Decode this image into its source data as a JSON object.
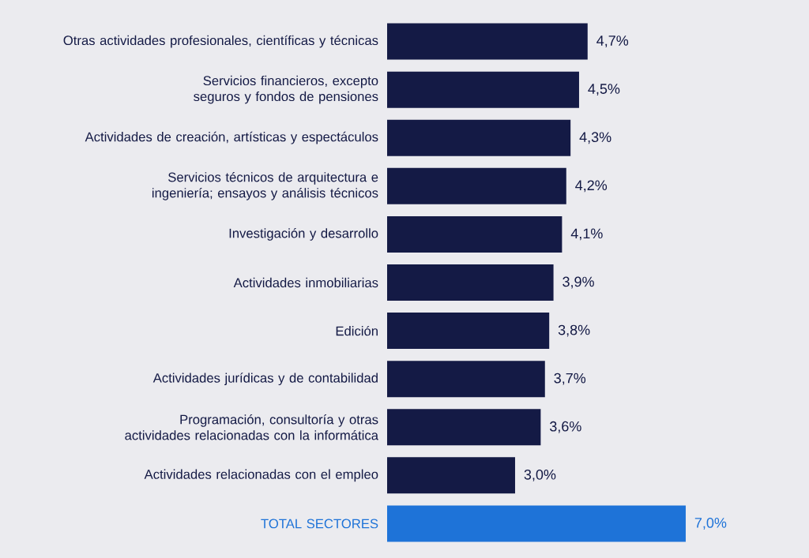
{
  "chart_data": {
    "type": "bar",
    "orientation": "horizontal",
    "categories": [
      "Otras actividades profesionales, científicas y técnicas",
      "Servicios financieros, excepto seguros y fondos de pensiones",
      "Actividades de creación, artísticas y espectáculos",
      "Servicios técnicos de arquitectura e ingeniería; ensayos y análisis técnicos",
      "Investigación y desarrollo",
      "Actividades inmobiliarias",
      "Edición",
      "Actividades jurídicas y de contabilidad",
      "Programación, consultoría y otras actividades relacionadas con la informática",
      "Actividades relacionadas con el empleo",
      "TOTAL SECTORES"
    ],
    "values": [
      4.7,
      4.5,
      4.3,
      4.2,
      4.1,
      3.9,
      3.8,
      3.7,
      3.6,
      3.0,
      7.0
    ],
    "value_labels": [
      "4,7%",
      "4,5%",
      "4,3%",
      "4,2%",
      "4,1%",
      "3,9%",
      "3,8%",
      "3,7%",
      "3,6%",
      "3,0%",
      "7,0%"
    ],
    "colors": [
      "#141a45",
      "#141a45",
      "#141a45",
      "#141a45",
      "#141a45",
      "#141a45",
      "#141a45",
      "#141a45",
      "#141a45",
      "#141a45",
      "#1e73d8"
    ]
  }
}
